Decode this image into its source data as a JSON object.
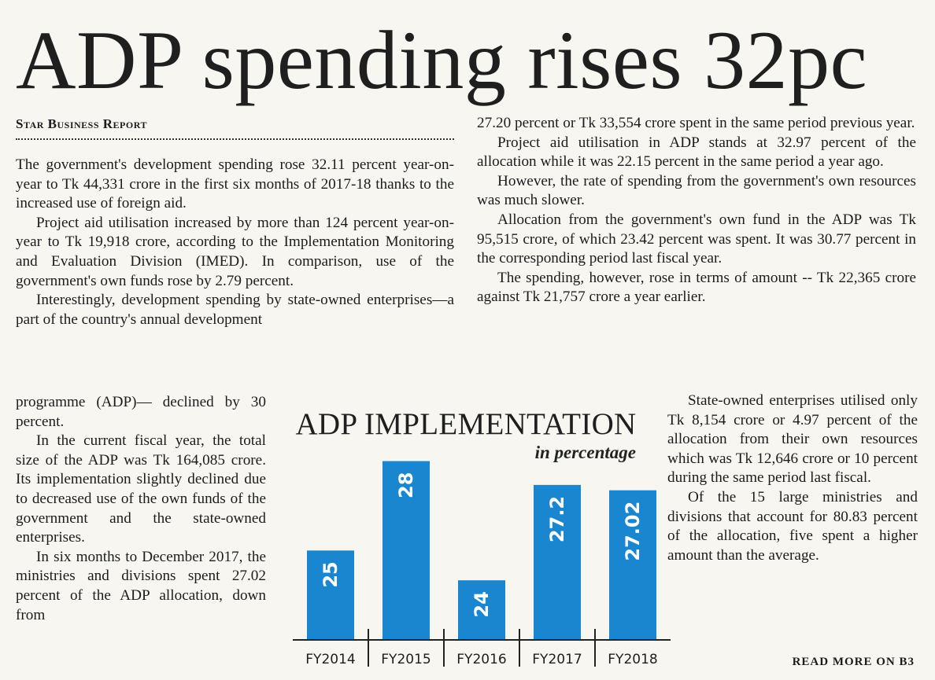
{
  "headline": "ADP spending rises 32pc",
  "byline": "Star Business Report",
  "read_more": "READ MORE ON B3",
  "col1_paragraphs": [
    "The government's development spending rose 32.11 percent year-on-year to Tk 44,331 crore in the first six months of 2017-18 thanks to the increased use of foreign aid.",
    "Project aid utilisation increased by more than 124 percent year-on-year to Tk 19,918 crore, according to the Implementation Monitoring and Evaluation Division (IMED). In comparison, use of the government's own funds rose by 2.79 percent.",
    "Interestingly, development spending by state-owned enterprises—a part of the country's annual development"
  ],
  "col1b_paragraphs": [
    "programme (ADP)— declined by 30 percent.",
    "In the current fiscal year, the total size of the ADP was Tk 164,085 crore. Its implementation slightly declined due to decreased use of the own funds of the government and the state-owned enterprises.",
    "In six months to December 2017, the ministries and divisions spent 27.02 percent of the ADP allocation, down from"
  ],
  "col2_paragraphs": [
    "27.20 percent or Tk 33,554 crore spent in the same period previous year.",
    "Project aid utilisation in ADP stands at 32.97 percent of the allocation while it was 22.15 percent in the same period a year ago.",
    "However, the rate of spending from the government's own resources was much slower.",
    "Allocation from the government's own fund in the ADP was Tk 95,515 crore, of which 23.42 percent was spent. It was 30.77 percent in the corresponding period last fiscal year.",
    "The spending, however, rose in terms of amount -- Tk 22,365 crore against Tk 21,757 crore a year earlier."
  ],
  "col3_paragraphs": [
    "State-owned enterprises utilised only Tk 8,154 crore or 4.97 percent of the allocation from their own resources which was Tk 12,646 crore or 10 percent during the same period last fiscal.",
    "Of the 15 large ministries and divisions that account for 80.83 percent of the allocation, five spent a higher amount than the average."
  ],
  "chart_data": {
    "type": "bar",
    "title": "ADP IMPLEMENTATION",
    "subtitle": "in percentage",
    "categories": [
      "FY2014",
      "FY2015",
      "FY2016",
      "FY2017",
      "FY2018"
    ],
    "values": [
      25,
      28,
      24,
      27.2,
      27.02
    ],
    "value_labels": [
      "25",
      "28",
      "24",
      "27.2",
      "27.02"
    ],
    "bar_color": "#1a86cf",
    "xlabel": "",
    "ylabel": "",
    "ylim": [
      22,
      28.7
    ]
  }
}
